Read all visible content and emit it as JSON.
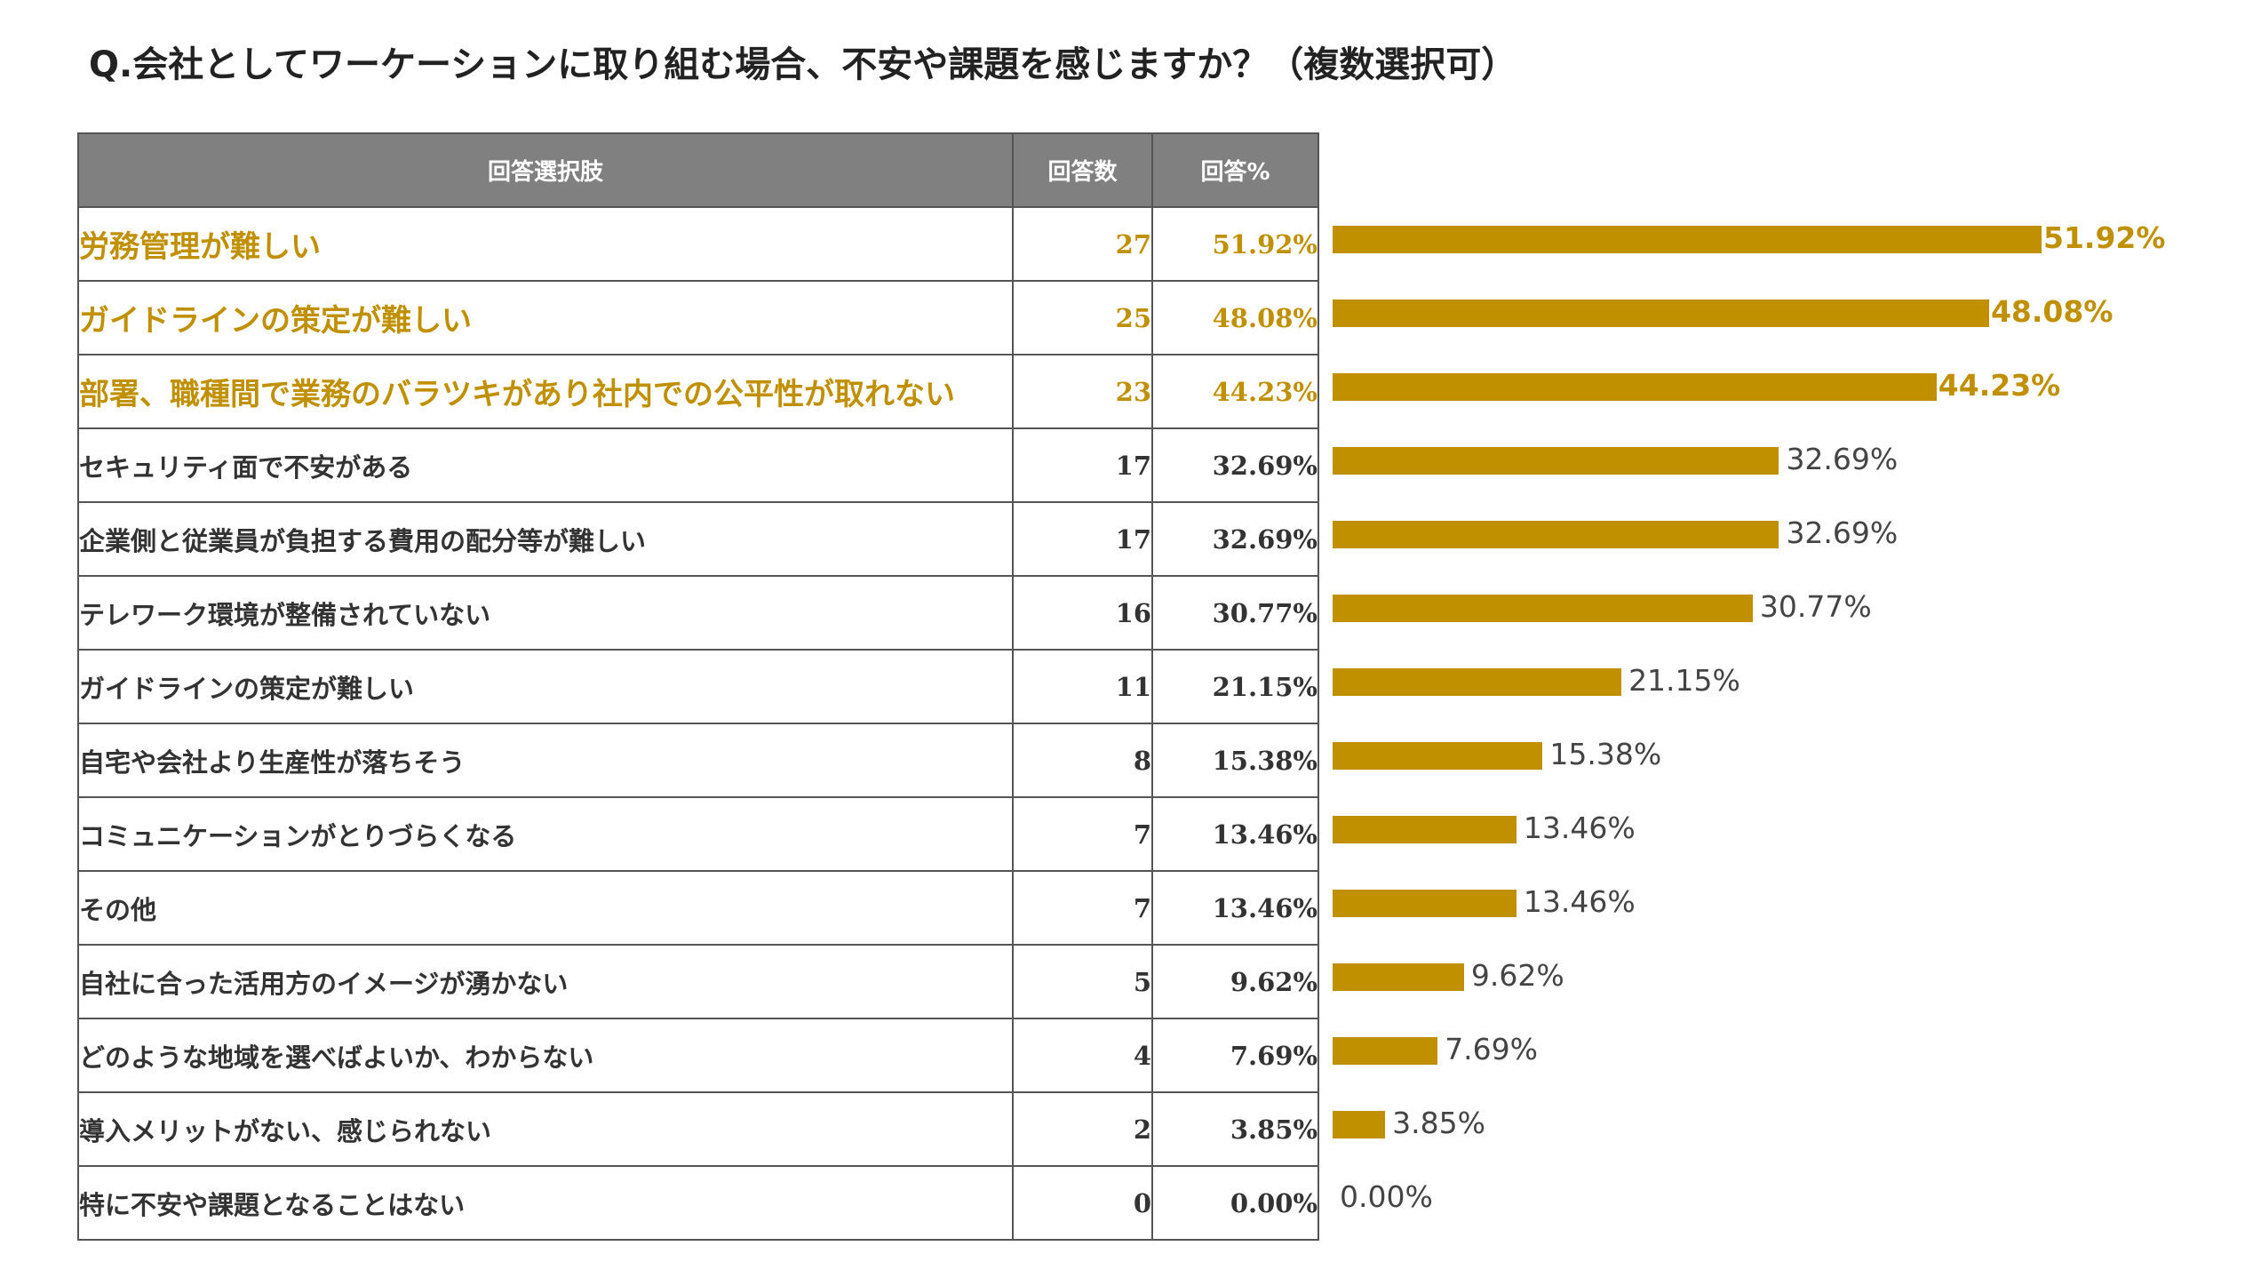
{
  "title": "Q.会社としてワーケーションに取り組む場合、不安や課題を感じますか？（複数選択可）",
  "table": {
    "headers": {
      "choice": "回答選択肢",
      "count": "回答数",
      "percent": "回答%"
    }
  },
  "colors": {
    "accent": "#c09000",
    "header_bg": "#808080",
    "text": "#333333"
  },
  "chart_data": {
    "type": "bar",
    "orientation": "horizontal",
    "categories": [
      "労務管理が難しい",
      "ガイドラインの策定が難しい",
      "部署、職種間で業務のバラツキがあり社内での公平性が取れない",
      "セキュリティ面で不安がある",
      "企業側と従業員が負担する費用の配分等が難しい",
      "テレワーク環境が整備されていない",
      "ガイドラインの策定が難しい",
      "自宅や会社より生産性が落ちそう",
      "コミュニケーションがとりづらくなる",
      "その他",
      "自社に合った活用方のイメージが湧かない",
      "どのような地域を選べばよいか、わからない",
      "導入メリットがない、感じられない",
      "特に不安や課題となることはない"
    ],
    "counts": [
      27,
      25,
      23,
      17,
      17,
      16,
      11,
      8,
      7,
      7,
      5,
      4,
      2,
      0
    ],
    "count_labels": [
      "27",
      "25",
      "23",
      "17",
      "17",
      "16",
      "11",
      "8",
      "7",
      "7",
      "5",
      "4",
      "2",
      "0"
    ],
    "values": [
      51.92,
      48.08,
      44.23,
      32.69,
      32.69,
      30.77,
      21.15,
      15.38,
      13.46,
      13.46,
      9.62,
      7.69,
      3.85,
      0.0
    ],
    "value_labels": [
      "51.92%",
      "48.08%",
      "44.23%",
      "32.69%",
      "32.69%",
      "30.77%",
      "21.15%",
      "15.38%",
      "13.46%",
      "13.46%",
      "9.62%",
      "7.69%",
      "3.85%",
      "0.00%"
    ],
    "highlighted": [
      true,
      true,
      true,
      false,
      false,
      false,
      false,
      false,
      false,
      false,
      false,
      false,
      false,
      false
    ],
    "xlim": [
      0,
      55
    ],
    "grid": false,
    "legend": "none",
    "title": "Q.会社としてワーケーションに取り組む場合、不安や課題を感じますか？（複数選択可）"
  }
}
